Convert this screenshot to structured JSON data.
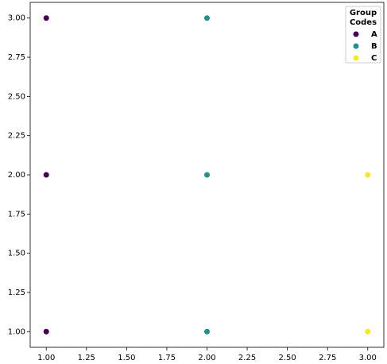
{
  "chart_data": {
    "type": "scatter",
    "legend_title": [
      "Group",
      "Codes"
    ],
    "legend": "upper right",
    "series": [
      {
        "name": "A",
        "color": "#440154",
        "x": [
          1,
          1,
          1
        ],
        "values": [
          1,
          2,
          3
        ]
      },
      {
        "name": "B",
        "color": "#21918c",
        "x": [
          2,
          2,
          2
        ],
        "values": [
          1,
          2,
          3
        ]
      },
      {
        "name": "C",
        "color": "#fde725",
        "x": [
          3,
          3
        ],
        "values": [
          1,
          2
        ]
      }
    ],
    "xlim": [
      0.9,
      3.1
    ],
    "ylim": [
      0.9,
      3.1
    ],
    "xticks": [
      {
        "value": 1,
        "label": "1.00"
      },
      {
        "value": 1.25,
        "label": "1.25"
      },
      {
        "value": 1.5,
        "label": "1.50"
      },
      {
        "value": 1.75,
        "label": "1.75"
      },
      {
        "value": 2,
        "label": "2.00"
      },
      {
        "value": 2.25,
        "label": "2.25"
      },
      {
        "value": 2.5,
        "label": "2.50"
      },
      {
        "value": 2.75,
        "label": "2.75"
      },
      {
        "value": 3,
        "label": "3.00"
      }
    ],
    "yticks": [
      {
        "value": 1,
        "label": "1.00"
      },
      {
        "value": 1.25,
        "label": "1.25"
      },
      {
        "value": 1.5,
        "label": "1.50"
      },
      {
        "value": 1.75,
        "label": "1.75"
      },
      {
        "value": 2,
        "label": "2.00"
      },
      {
        "value": 2.25,
        "label": "2.25"
      },
      {
        "value": 2.5,
        "label": "2.50"
      },
      {
        "value": 2.75,
        "label": "2.75"
      },
      {
        "value": 3,
        "label": "3.00"
      }
    ],
    "grid": false
  }
}
